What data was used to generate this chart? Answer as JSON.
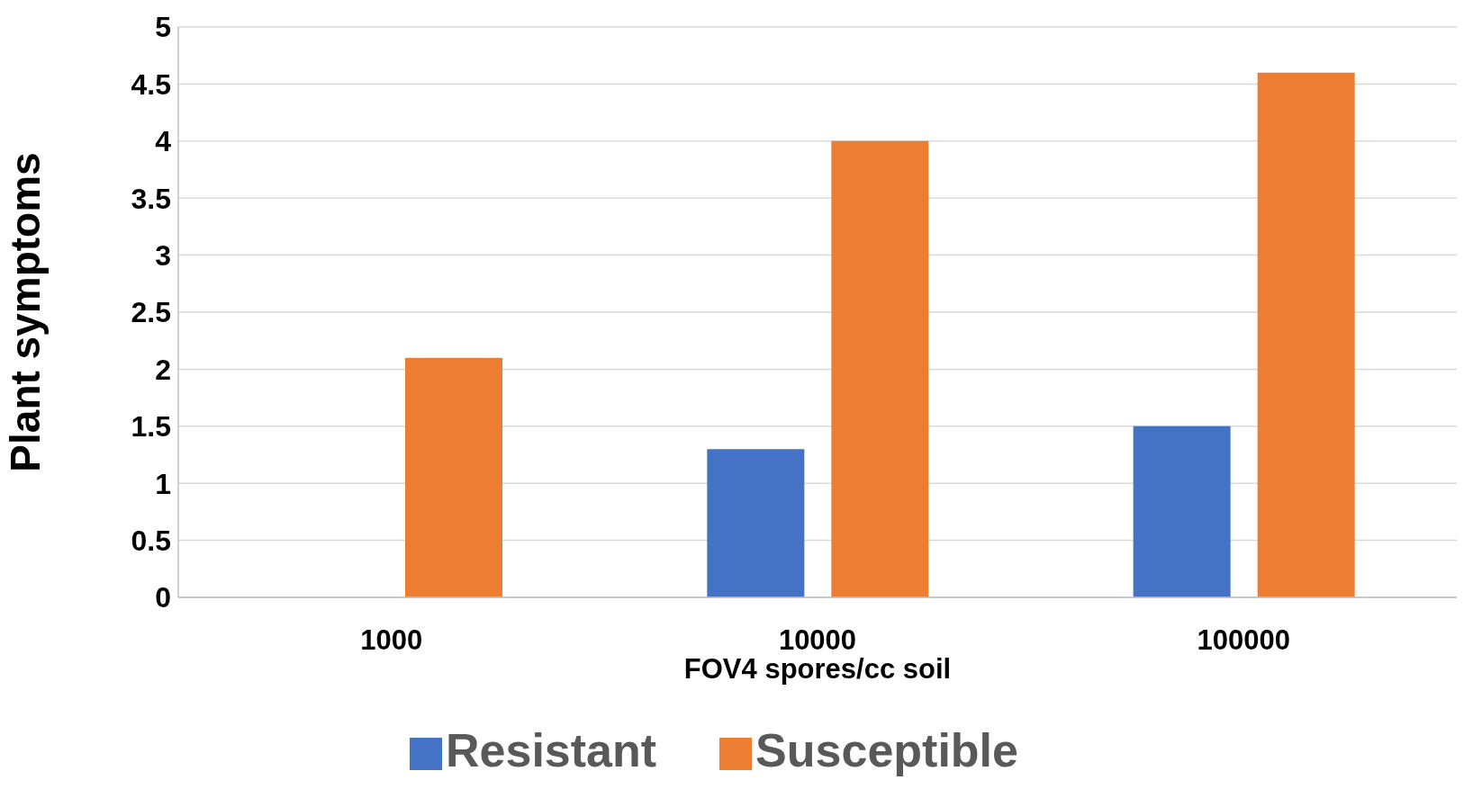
{
  "chart_data": {
    "type": "bar",
    "xlabel": "FOV4 spores/cc soil",
    "ylabel": "Plant symptoms",
    "categories": [
      "1000",
      "10000",
      "100000"
    ],
    "series": [
      {
        "name": "Resistant",
        "color": "#4472c4",
        "values": [
          0,
          1.3,
          1.5
        ]
      },
      {
        "name": "Susceptible",
        "color": "#ed7d31",
        "values": [
          2.1,
          4.0,
          4.6
        ]
      }
    ],
    "ylim": [
      0,
      5
    ],
    "yticks": [
      0,
      0.5,
      1,
      1.5,
      2,
      2.5,
      3,
      3.5,
      4,
      4.5,
      5
    ],
    "grid": "y",
    "legend": "bottom"
  }
}
